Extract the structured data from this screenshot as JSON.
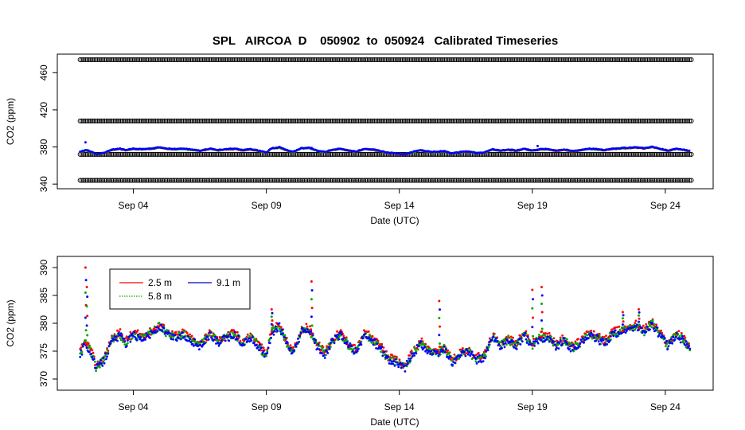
{
  "chart_data": [
    {
      "panel": "top",
      "type": "scatter",
      "title": "SPL   AIRCOA  D    050902  to  050924   Calibrated Timeseries",
      "xlabel": "Date (UTC)",
      "ylabel": "CO2 (ppm)",
      "x_unit": "days since Sep 01 00:00 UTC",
      "xlim": [
        1.5,
        25.5
      ],
      "ylim": [
        335,
        480
      ],
      "x_ticks": [
        {
          "value": 4,
          "label": "Sep 04"
        },
        {
          "value": 9,
          "label": "Sep 09"
        },
        {
          "value": 14,
          "label": "Sep 14"
        },
        {
          "value": 19,
          "label": "Sep 19"
        },
        {
          "value": 24,
          "label": "Sep 24"
        }
      ],
      "y_ticks": [
        340,
        380,
        420,
        460
      ],
      "reference_bands": [
        {
          "y": 474,
          "x_range": [
            2.0,
            25.0
          ],
          "marker": "open-circle",
          "color": "#000000"
        },
        {
          "y": 408,
          "x_range": [
            2.0,
            25.0
          ],
          "marker": "open-circle",
          "color": "#000000"
        },
        {
          "y": 372,
          "x_range": [
            2.0,
            25.0
          ],
          "marker": "open-circle",
          "color": "#000000"
        },
        {
          "y": 344,
          "x_range": [
            2.0,
            25.0
          ],
          "marker": "open-circle",
          "color": "#000000"
        }
      ],
      "series": [
        {
          "name": "2.5 m",
          "color": "#ff0000"
        },
        {
          "name": "5.8 m",
          "color": "#00aa00"
        },
        {
          "name": "9.1 m",
          "color": "#0000ff"
        }
      ],
      "grid": false
    },
    {
      "panel": "bottom",
      "type": "scatter",
      "xlabel": "Date (UTC)",
      "ylabel": "CO2 (ppm)",
      "x_unit": "days since Sep 01 00:00 UTC",
      "xlim": [
        1.5,
        25.5
      ],
      "ylim": [
        368,
        392
      ],
      "x_ticks": [
        {
          "value": 4,
          "label": "Sep 04"
        },
        {
          "value": 9,
          "label": "Sep 09"
        },
        {
          "value": 14,
          "label": "Sep 14"
        },
        {
          "value": 19,
          "label": "Sep 19"
        },
        {
          "value": 24,
          "label": "Sep 24"
        }
      ],
      "y_ticks": [
        370,
        375,
        380,
        385,
        390
      ],
      "legend": {
        "position": "top-left",
        "entries": [
          {
            "name": "2.5 m",
            "color": "#ff0000",
            "style": "solid"
          },
          {
            "name": "9.1 m",
            "color": "#0000cc",
            "style": "solid"
          },
          {
            "name": "5.8 m",
            "color": "#00aa00",
            "style": "dotted"
          }
        ]
      },
      "series": [
        {
          "name": "2.5 m",
          "color": "#ff0000"
        },
        {
          "name": "5.8 m",
          "color": "#00aa00"
        },
        {
          "name": "9.1 m",
          "color": "#0000ff"
        }
      ],
      "base_curve": {
        "x": [
          2.0,
          2.2,
          2.4,
          2.6,
          2.9,
          3.2,
          3.5,
          3.7,
          4.0,
          4.3,
          4.6,
          5.0,
          5.3,
          5.6,
          5.9,
          6.2,
          6.5,
          6.9,
          7.2,
          7.5,
          7.8,
          8.1,
          8.4,
          8.7,
          9.0,
          9.2,
          9.5,
          9.8,
          10.0,
          10.3,
          10.6,
          10.9,
          11.2,
          11.5,
          11.8,
          12.1,
          12.4,
          12.7,
          13.0,
          13.3,
          13.6,
          13.9,
          14.2,
          14.5,
          14.8,
          15.1,
          15.4,
          15.7,
          16.0,
          16.3,
          16.6,
          16.9,
          17.2,
          17.5,
          17.8,
          18.1,
          18.4,
          18.7,
          19.0,
          19.3,
          19.6,
          19.9,
          20.2,
          20.5,
          20.8,
          21.1,
          21.4,
          21.7,
          22.0,
          22.3,
          22.6,
          22.9,
          23.2,
          23.5,
          23.8,
          24.1,
          24.4,
          24.7,
          24.9
        ],
        "y": [
          374.5,
          376.5,
          375.0,
          372.0,
          373.5,
          377.0,
          378.0,
          376.5,
          378.0,
          377.5,
          378.0,
          379.5,
          378.0,
          377.5,
          378.0,
          377.0,
          376.0,
          378.0,
          376.5,
          377.5,
          378.0,
          376.5,
          377.5,
          376.0,
          374.0,
          378.5,
          379.5,
          376.0,
          374.5,
          378.5,
          379.0,
          376.0,
          374.5,
          377.0,
          378.0,
          376.0,
          375.0,
          378.0,
          377.0,
          375.5,
          373.5,
          373.0,
          372.0,
          374.5,
          376.5,
          375.0,
          374.5,
          375.5,
          373.0,
          374.5,
          375.0,
          373.5,
          374.0,
          377.5,
          376.0,
          377.0,
          376.0,
          378.0,
          376.0,
          377.5,
          377.5,
          376.0,
          377.0,
          375.5,
          376.5,
          378.0,
          377.5,
          376.5,
          378.0,
          378.5,
          379.0,
          379.5,
          378.5,
          380.0,
          378.0,
          376.0,
          378.0,
          377.0,
          375.5
        ]
      },
      "spikes": [
        {
          "x": 2.2,
          "y": 390.0
        },
        {
          "x": 2.25,
          "y": 386.5
        },
        {
          "x": 9.2,
          "y": 382.5
        },
        {
          "x": 10.7,
          "y": 387.5
        },
        {
          "x": 15.5,
          "y": 384.0
        },
        {
          "x": 19.0,
          "y": 386.0
        },
        {
          "x": 19.35,
          "y": 386.5
        },
        {
          "x": 22.4,
          "y": 382.0
        },
        {
          "x": 23.0,
          "y": 382.5
        }
      ],
      "grid": false
    }
  ]
}
